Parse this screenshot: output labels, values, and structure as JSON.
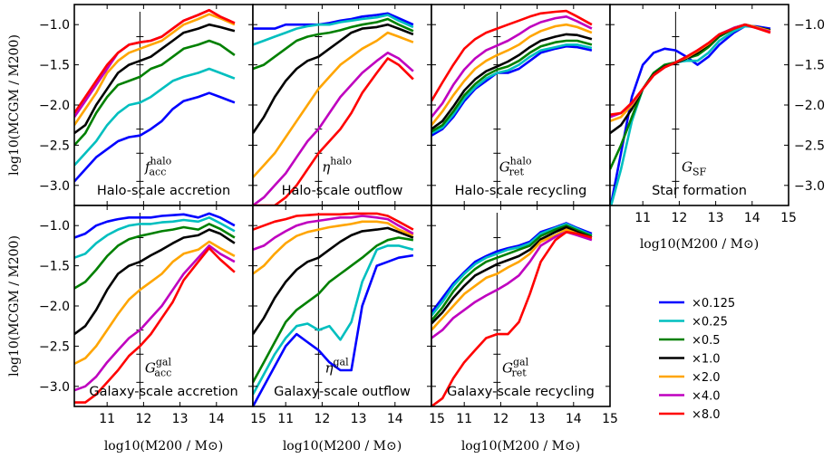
{
  "chart_data": {
    "type": "line",
    "x": [
      10.1,
      10.4,
      10.7,
      11.0,
      11.3,
      11.6,
      11.9,
      12.2,
      12.5,
      12.8,
      13.1,
      13.5,
      13.8,
      14.1,
      14.5
    ],
    "xlim": [
      10.1,
      15
    ],
    "ylim": [
      -3.25,
      -0.75
    ],
    "xticks": [
      "11",
      "12",
      "13",
      "14",
      "15"
    ],
    "yticks": [
      "−1.0",
      "−1.5",
      "−2.0",
      "−2.5",
      "−3.0"
    ],
    "xlabel": "log10(M200 / M⊙)",
    "ylabel": "log10(MCGM / M200)",
    "legend": {
      "placement": "lower-right",
      "entries": [
        {
          "label": "×0.125",
          "color": "#0000ff"
        },
        {
          "label": "×0.25",
          "color": "#00bfbf"
        },
        {
          "label": "×0.5",
          "color": "#008000"
        },
        {
          "label": "×1.0",
          "color": "#000000"
        },
        {
          "label": "×2.0",
          "color": "#ffa500"
        },
        {
          "label": "×4.0",
          "color": "#bf00bf"
        },
        {
          "label": "×8.0",
          "color": "#ff0000"
        }
      ]
    },
    "panels": [
      {
        "title": "Halo-scale accretion",
        "sym": "f",
        "sub": "acc",
        "sup": "halo",
        "series": [
          [
            -2.95,
            -2.8,
            -2.65,
            -2.55,
            -2.45,
            -2.4,
            -2.38,
            -2.3,
            -2.2,
            -2.05,
            -1.95,
            -1.9,
            -1.85,
            -1.9,
            -1.97
          ],
          [
            -2.75,
            -2.6,
            -2.45,
            -2.25,
            -2.1,
            -2.0,
            -1.97,
            -1.9,
            -1.8,
            -1.7,
            -1.65,
            -1.6,
            -1.55,
            -1.6,
            -1.67
          ],
          [
            -2.5,
            -2.35,
            -2.1,
            -1.9,
            -1.75,
            -1.7,
            -1.65,
            -1.55,
            -1.5,
            -1.4,
            -1.3,
            -1.25,
            -1.2,
            -1.25,
            -1.38
          ],
          [
            -2.35,
            -2.25,
            -2.0,
            -1.8,
            -1.6,
            -1.5,
            -1.45,
            -1.4,
            -1.3,
            -1.2,
            -1.1,
            -1.05,
            -1.0,
            -1.03,
            -1.08
          ],
          [
            -2.25,
            -2.05,
            -1.85,
            -1.6,
            -1.45,
            -1.35,
            -1.3,
            -1.25,
            -1.2,
            -1.1,
            -1.0,
            -0.93,
            -0.87,
            -0.92,
            -1.0
          ],
          [
            -2.15,
            -1.95,
            -1.75,
            -1.55,
            -1.35,
            -1.25,
            -1.22,
            -1.2,
            -1.15,
            -1.05,
            -0.95,
            -0.88,
            -0.82,
            -0.9,
            -0.98
          ],
          [
            -2.1,
            -1.9,
            -1.7,
            -1.5,
            -1.35,
            -1.25,
            -1.22,
            -1.2,
            -1.15,
            -1.05,
            -0.95,
            -0.88,
            -0.82,
            -0.9,
            -0.98
          ]
        ]
      },
      {
        "title": "Halo-scale outflow",
        "sym": "η",
        "sub": "",
        "sup": "halo",
        "series": [
          [
            -1.05,
            -1.05,
            -1.05,
            -1.0,
            -1.0,
            -1.0,
            -1.0,
            -0.98,
            -0.95,
            -0.93,
            -0.9,
            -0.88,
            -0.86,
            -0.92,
            -1.0
          ],
          [
            -1.25,
            -1.2,
            -1.15,
            -1.1,
            -1.05,
            -1.02,
            -1.0,
            -1.0,
            -0.97,
            -0.95,
            -0.93,
            -0.91,
            -0.88,
            -0.95,
            -1.03
          ],
          [
            -1.55,
            -1.5,
            -1.4,
            -1.3,
            -1.2,
            -1.15,
            -1.12,
            -1.1,
            -1.07,
            -1.03,
            -1.0,
            -0.97,
            -0.93,
            -1.0,
            -1.08
          ],
          [
            -2.35,
            -2.15,
            -1.9,
            -1.7,
            -1.55,
            -1.45,
            -1.4,
            -1.3,
            -1.2,
            -1.1,
            -1.05,
            -1.03,
            -1.0,
            -1.05,
            -1.12
          ],
          [
            -2.9,
            -2.75,
            -2.6,
            -2.4,
            -2.2,
            -2.0,
            -1.8,
            -1.65,
            -1.5,
            -1.4,
            -1.3,
            -1.2,
            -1.1,
            -1.15,
            -1.22
          ],
          [
            -3.25,
            -3.15,
            -3.0,
            -2.85,
            -2.65,
            -2.45,
            -2.3,
            -2.1,
            -1.9,
            -1.75,
            -1.6,
            -1.45,
            -1.35,
            -1.42,
            -1.58
          ],
          [
            -3.25,
            -3.25,
            -3.25,
            -3.15,
            -3.0,
            -2.8,
            -2.6,
            -2.45,
            -2.3,
            -2.1,
            -1.85,
            -1.6,
            -1.42,
            -1.5,
            -1.68
          ]
        ]
      },
      {
        "title": "Halo-scale recycling",
        "sym": "G",
        "sub": "ret",
        "sup": "halo",
        "series": [
          [
            -2.38,
            -2.3,
            -2.15,
            -1.95,
            -1.8,
            -1.7,
            -1.6,
            -1.6,
            -1.55,
            -1.45,
            -1.35,
            -1.3,
            -1.27,
            -1.28,
            -1.32
          ],
          [
            -2.35,
            -2.28,
            -2.12,
            -1.92,
            -1.78,
            -1.67,
            -1.6,
            -1.57,
            -1.5,
            -1.4,
            -1.32,
            -1.28,
            -1.25,
            -1.25,
            -1.29
          ],
          [
            -2.33,
            -2.25,
            -2.08,
            -1.88,
            -1.74,
            -1.63,
            -1.56,
            -1.52,
            -1.45,
            -1.35,
            -1.27,
            -1.22,
            -1.2,
            -1.2,
            -1.25
          ],
          [
            -2.3,
            -2.2,
            -2.02,
            -1.82,
            -1.68,
            -1.58,
            -1.52,
            -1.46,
            -1.38,
            -1.28,
            -1.2,
            -1.15,
            -1.12,
            -1.13,
            -1.18
          ],
          [
            -2.25,
            -2.08,
            -1.88,
            -1.7,
            -1.55,
            -1.45,
            -1.38,
            -1.32,
            -1.25,
            -1.15,
            -1.08,
            -1.02,
            -1.0,
            -1.03,
            -1.1
          ],
          [
            -2.15,
            -1.98,
            -1.75,
            -1.56,
            -1.42,
            -1.32,
            -1.26,
            -1.2,
            -1.12,
            -1.03,
            -0.97,
            -0.92,
            -0.9,
            -0.96,
            -1.05
          ],
          [
            -1.95,
            -1.72,
            -1.5,
            -1.3,
            -1.18,
            -1.1,
            -1.05,
            -1.0,
            -0.95,
            -0.9,
            -0.86,
            -0.84,
            -0.83,
            -0.9,
            -1.0
          ]
        ]
      },
      {
        "title": "Star formation",
        "sym": "G",
        "sub": "SF",
        "sup": "",
        "series": [
          [
            -3.3,
            -2.6,
            -1.9,
            -1.5,
            -1.35,
            -1.3,
            -1.32,
            -1.4,
            -1.5,
            -1.4,
            -1.25,
            -1.1,
            -1.02,
            -1.02,
            -1.05
          ],
          [
            -3.3,
            -2.8,
            -2.2,
            -1.8,
            -1.6,
            -1.5,
            -1.47,
            -1.45,
            -1.45,
            -1.35,
            -1.2,
            -1.08,
            -1.02,
            -1.03,
            -1.07
          ],
          [
            -2.8,
            -2.5,
            -2.15,
            -1.8,
            -1.6,
            -1.5,
            -1.47,
            -1.42,
            -1.38,
            -1.28,
            -1.15,
            -1.05,
            -1.0,
            -1.03,
            -1.07
          ],
          [
            -2.35,
            -2.25,
            -2.05,
            -1.8,
            -1.62,
            -1.52,
            -1.48,
            -1.42,
            -1.35,
            -1.25,
            -1.13,
            -1.04,
            -1.0,
            -1.03,
            -1.07
          ],
          [
            -2.2,
            -2.15,
            -2.0,
            -1.8,
            -1.63,
            -1.53,
            -1.47,
            -1.41,
            -1.33,
            -1.24,
            -1.12,
            -1.04,
            -1.0,
            -1.03,
            -1.08
          ],
          [
            -2.15,
            -2.1,
            -1.98,
            -1.8,
            -1.63,
            -1.53,
            -1.47,
            -1.4,
            -1.32,
            -1.23,
            -1.12,
            -1.04,
            -1.0,
            -1.04,
            -1.09
          ],
          [
            -2.12,
            -2.1,
            -1.97,
            -1.8,
            -1.63,
            -1.53,
            -1.47,
            -1.4,
            -1.32,
            -1.23,
            -1.12,
            -1.05,
            -1.0,
            -1.04,
            -1.1
          ]
        ]
      },
      {
        "title": "Galaxy-scale accretion",
        "sym": "G",
        "sub": "acc",
        "sup": "gal",
        "series": [
          [
            -1.15,
            -1.1,
            -1.0,
            -0.95,
            -0.92,
            -0.9,
            -0.9,
            -0.9,
            -0.88,
            -0.87,
            -0.86,
            -0.9,
            -0.85,
            -0.9,
            -1.0
          ],
          [
            -1.4,
            -1.35,
            -1.22,
            -1.12,
            -1.05,
            -1.0,
            -0.98,
            -0.98,
            -0.96,
            -0.95,
            -0.93,
            -0.95,
            -0.9,
            -0.97,
            -1.07
          ],
          [
            -1.78,
            -1.7,
            -1.55,
            -1.38,
            -1.25,
            -1.17,
            -1.13,
            -1.1,
            -1.07,
            -1.05,
            -1.02,
            -1.05,
            -0.98,
            -1.04,
            -1.15
          ],
          [
            -2.35,
            -2.25,
            -2.05,
            -1.8,
            -1.6,
            -1.5,
            -1.45,
            -1.37,
            -1.3,
            -1.22,
            -1.15,
            -1.12,
            -1.05,
            -1.1,
            -1.22
          ],
          [
            -2.72,
            -2.65,
            -2.5,
            -2.3,
            -2.1,
            -1.92,
            -1.8,
            -1.7,
            -1.6,
            -1.45,
            -1.35,
            -1.3,
            -1.2,
            -1.28,
            -1.38
          ],
          [
            -3.05,
            -3.0,
            -2.88,
            -2.7,
            -2.55,
            -2.4,
            -2.3,
            -2.15,
            -2.0,
            -1.8,
            -1.6,
            -1.4,
            -1.25,
            -1.35,
            -1.45
          ],
          [
            -3.2,
            -3.2,
            -3.1,
            -2.95,
            -2.8,
            -2.62,
            -2.5,
            -2.35,
            -2.15,
            -1.95,
            -1.68,
            -1.45,
            -1.28,
            -1.42,
            -1.58
          ]
        ]
      },
      {
        "title": "Galaxy-scale outflow",
        "sym": "η",
        "sub": "",
        "sup": "gal",
        "series": [
          [
            -3.25,
            -3.0,
            -2.75,
            -2.5,
            -2.35,
            -2.45,
            -2.55,
            -2.7,
            -2.8,
            -2.8,
            -2.0,
            -1.5,
            -1.45,
            -1.4,
            -1.37
          ],
          [
            -3.1,
            -2.85,
            -2.6,
            -2.4,
            -2.25,
            -2.22,
            -2.3,
            -2.25,
            -2.42,
            -2.2,
            -1.7,
            -1.3,
            -1.25,
            -1.25,
            -1.3
          ],
          [
            -2.95,
            -2.7,
            -2.45,
            -2.2,
            -2.05,
            -1.95,
            -1.85,
            -1.7,
            -1.6,
            -1.5,
            -1.4,
            -1.25,
            -1.18,
            -1.15,
            -1.18
          ],
          [
            -2.35,
            -2.15,
            -1.9,
            -1.7,
            -1.55,
            -1.45,
            -1.4,
            -1.3,
            -1.2,
            -1.12,
            -1.07,
            -1.05,
            -1.03,
            -1.08,
            -1.15
          ],
          [
            -1.6,
            -1.5,
            -1.35,
            -1.22,
            -1.13,
            -1.08,
            -1.05,
            -1.02,
            -1.0,
            -0.98,
            -0.95,
            -0.95,
            -0.97,
            -1.05,
            -1.12
          ],
          [
            -1.3,
            -1.25,
            -1.15,
            -1.07,
            -1.0,
            -0.96,
            -0.94,
            -0.92,
            -0.9,
            -0.9,
            -0.88,
            -0.9,
            -0.92,
            -1.0,
            -1.1
          ],
          [
            -1.05,
            -1.0,
            -0.95,
            -0.92,
            -0.88,
            -0.87,
            -0.86,
            -0.86,
            -0.86,
            -0.85,
            -0.85,
            -0.85,
            -0.88,
            -0.95,
            -1.05
          ]
        ]
      },
      {
        "title": "Galaxy-scale recycling",
        "sym": "G",
        "sub": "ret",
        "sup": "gal",
        "series": [
          [
            -2.08,
            -1.9,
            -1.72,
            -1.58,
            -1.45,
            -1.38,
            -1.32,
            -1.28,
            -1.25,
            -1.2,
            -1.08,
            -1.02,
            -0.97,
            -1.03,
            -1.1
          ],
          [
            -2.12,
            -1.95,
            -1.75,
            -1.6,
            -1.48,
            -1.4,
            -1.35,
            -1.3,
            -1.27,
            -1.22,
            -1.1,
            -1.03,
            -0.98,
            -1.04,
            -1.12
          ],
          [
            -2.18,
            -2.02,
            -1.82,
            -1.66,
            -1.54,
            -1.45,
            -1.4,
            -1.35,
            -1.3,
            -1.25,
            -1.13,
            -1.05,
            -1.0,
            -1.06,
            -1.13
          ],
          [
            -2.22,
            -2.08,
            -1.9,
            -1.75,
            -1.62,
            -1.55,
            -1.48,
            -1.43,
            -1.38,
            -1.3,
            -1.17,
            -1.08,
            -1.02,
            -1.08,
            -1.15
          ],
          [
            -2.3,
            -2.15,
            -2.0,
            -1.85,
            -1.75,
            -1.65,
            -1.6,
            -1.52,
            -1.45,
            -1.35,
            -1.2,
            -1.12,
            -1.05,
            -1.1,
            -1.17
          ],
          [
            -2.4,
            -2.3,
            -2.15,
            -2.05,
            -1.95,
            -1.87,
            -1.8,
            -1.72,
            -1.62,
            -1.45,
            -1.25,
            -1.14,
            -1.08,
            -1.12,
            -1.18
          ],
          [
            -3.25,
            -3.15,
            -2.9,
            -2.7,
            -2.55,
            -2.4,
            -2.35,
            -2.35,
            -2.2,
            -1.85,
            -1.45,
            -1.18,
            -1.08,
            -1.1,
            -1.15
          ]
        ]
      }
    ]
  }
}
